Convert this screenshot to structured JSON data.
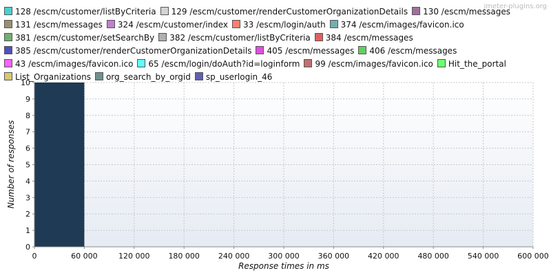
{
  "watermark": "jmeter-plugins.org",
  "legend": [
    {
      "label": "128 /escm/customer/listByCriteria",
      "color": "#4bd0d0"
    },
    {
      "label": "129 /escm/customer/renderCustomerOrganizationDetails",
      "color": "#d4d4d4"
    },
    {
      "label": "130 /escm/messages",
      "color": "#a070a0"
    },
    {
      "label": "131 /escm/messages",
      "color": "#9a9070"
    },
    {
      "label": "324 /escm/customer/index",
      "color": "#c080d0"
    },
    {
      "label": "33 /escm/login/auth",
      "color": "#ff8070"
    },
    {
      "label": "374 /escm/images/favicon.ico",
      "color": "#70b0b0"
    },
    {
      "label": "381 /escm/customer/setSearchBy",
      "color": "#70b070"
    },
    {
      "label": "382 /escm/customer/listByCriteria",
      "color": "#b0b0b0"
    },
    {
      "label": "384 /escm/messages",
      "color": "#e06060"
    },
    {
      "label": "385 /escm/customer/renderCustomerOrganizationDetails",
      "color": "#5050c0"
    },
    {
      "label": "405 /escm/messages",
      "color": "#e050e0"
    },
    {
      "label": "406 /escm/messages",
      "color": "#60d060"
    },
    {
      "label": "43 /escm/images/favicon.ico",
      "color": "#ff60ff"
    },
    {
      "label": "65 /escm/login/doAuth?id=loginform",
      "color": "#60ffff"
    },
    {
      "label": "99 /escm/images/favicon.ico",
      "color": "#c07070"
    },
    {
      "label": "Hit_the_portal",
      "color": "#70ff70"
    },
    {
      "label": "List_Organizations",
      "color": "#d8c870"
    },
    {
      "label": "org_search_by_orgid",
      "color": "#709090"
    },
    {
      "label": "sp_userlogin_46",
      "color": "#6060b0"
    }
  ],
  "legend_rows": [
    [
      0,
      1,
      2
    ],
    [
      3,
      4,
      5,
      6
    ],
    [
      7,
      8,
      9
    ],
    [
      10,
      11,
      12
    ],
    [
      13,
      14,
      15,
      16
    ],
    [
      17,
      18,
      19
    ]
  ],
  "chart_data": {
    "type": "bar",
    "xlabel": "Response times in ms",
    "ylabel": "Number of responses",
    "xlim": [
      0,
      600000
    ],
    "ylim": [
      0,
      10
    ],
    "x_ticks": [
      0,
      60000,
      120000,
      180000,
      240000,
      300000,
      360000,
      420000,
      480000,
      540000,
      600000
    ],
    "x_tick_labels": [
      "0",
      "60 000",
      "120 000",
      "180 000",
      "240 000",
      "300 000",
      "360 000",
      "420 000",
      "480 000",
      "540 000",
      "600 000"
    ],
    "y_ticks": [
      0,
      1,
      2,
      3,
      4,
      5,
      6,
      7,
      8,
      9,
      10
    ],
    "grid": true,
    "bars": [
      {
        "x_start": 0,
        "x_end": 60000,
        "value": 10,
        "color": "#1e3a54"
      }
    ]
  }
}
